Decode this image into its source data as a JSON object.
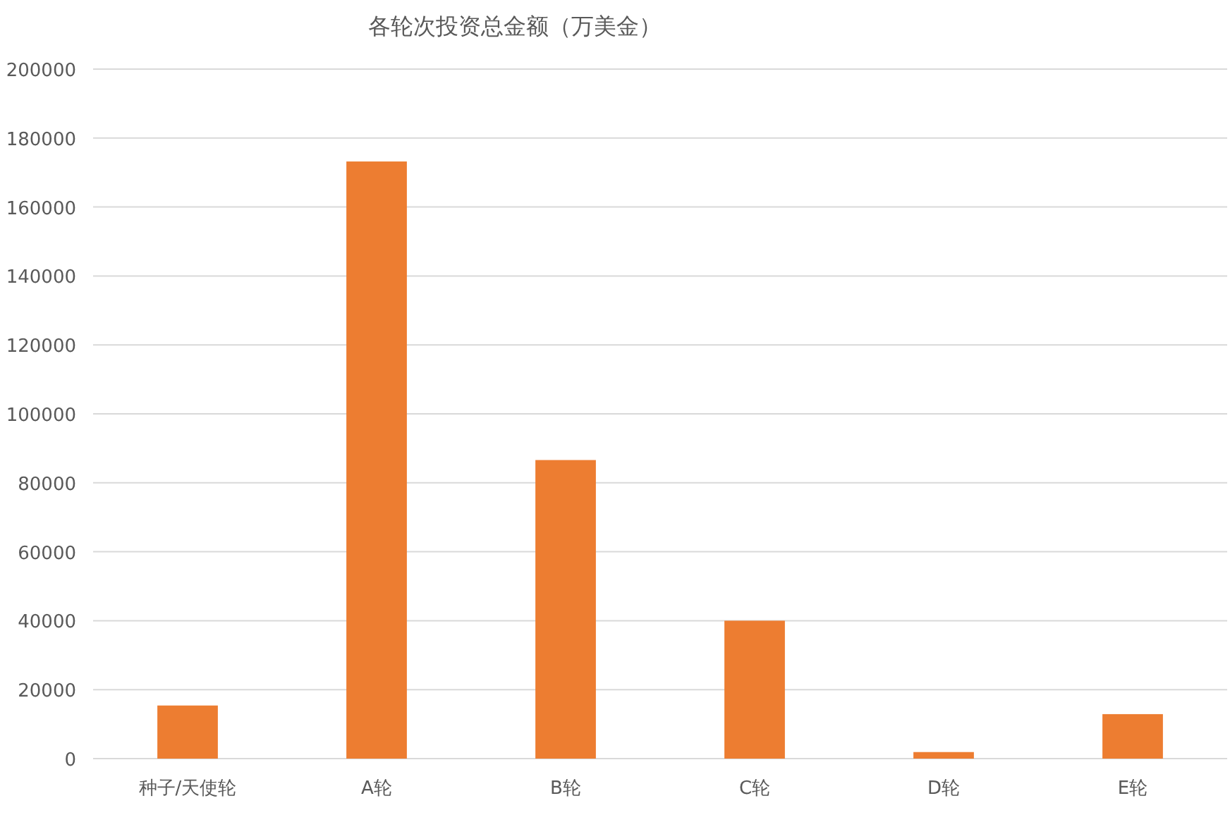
{
  "chart_data": {
    "type": "bar",
    "title": "各轮次投资总金额（万美金）",
    "categories": [
      "种子/天使轮",
      "A轮",
      "B轮",
      "C轮",
      "D轮",
      "E轮"
    ],
    "values": [
      15400,
      173200,
      86600,
      40000,
      1900,
      12900
    ],
    "color": "#ed7d31",
    "ylim": [
      0,
      200000
    ],
    "yticks": [
      0,
      20000,
      40000,
      60000,
      80000,
      100000,
      120000,
      140000,
      160000,
      180000,
      200000
    ],
    "grid": "y"
  }
}
